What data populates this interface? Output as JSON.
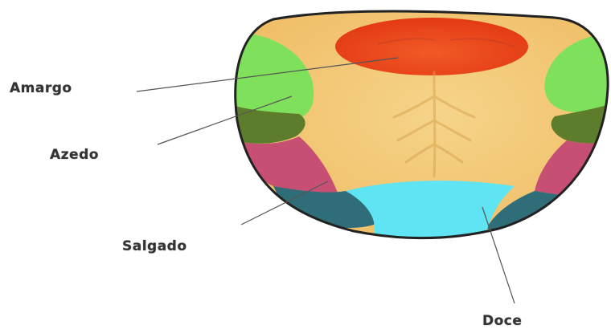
{
  "labels": {
    "bitter": "Amargo",
    "sour": "Azedo",
    "salty": "Salgado",
    "sweet": "Doce"
  },
  "colors": {
    "tongue_base": "#f3c56e",
    "bitter_zone": "#e9441c",
    "sour_zone": "#7ee05a",
    "salty_zone": "#c94f72",
    "sweet_zone": "#5ee4f2",
    "outline": "#222222",
    "leader_line": "#555555"
  }
}
